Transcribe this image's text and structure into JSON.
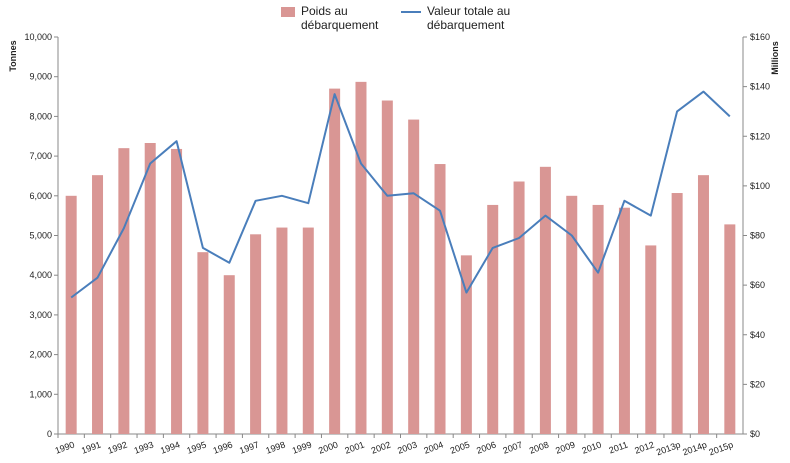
{
  "legend": {
    "bar_label": "Poids au débarquement",
    "line_label": "Valeur totale au débarquement"
  },
  "colors": {
    "bar": "#d99694",
    "line": "#4a7ebb",
    "axis": "#888888",
    "text": "#222222"
  },
  "chart_data": {
    "type": "bar",
    "categories": [
      "1990",
      "1991",
      "1992",
      "1993",
      "1994",
      "1995",
      "1996",
      "1997",
      "1998",
      "1999",
      "2000",
      "2001",
      "2002",
      "2003",
      "2004",
      "2005",
      "2006",
      "2007",
      "2008",
      "2009",
      "2010",
      "2011",
      "2012",
      "2013p",
      "2014p",
      "2015p"
    ],
    "series": [
      {
        "name": "Poids au débarquement",
        "type": "bar",
        "axis": "left",
        "values": [
          6000,
          6520,
          7200,
          7330,
          7180,
          4580,
          4000,
          5030,
          5200,
          5200,
          8700,
          8870,
          8400,
          7920,
          6800,
          4500,
          5770,
          6360,
          6730,
          6000,
          5770,
          5700,
          4750,
          6070,
          6520,
          5280
        ]
      },
      {
        "name": "Valeur totale au débarquement",
        "type": "line",
        "axis": "right",
        "values": [
          55,
          63,
          83,
          109,
          118,
          75,
          69,
          94,
          96,
          93,
          137,
          109,
          96,
          97,
          90,
          57,
          75,
          79,
          88,
          80,
          65,
          94,
          88,
          130,
          138,
          128
        ]
      }
    ],
    "y_left": {
      "label": "Tonnes",
      "ylim": [
        0,
        10000
      ],
      "ticks": [
        "0",
        "1,000",
        "2,000",
        "3,000",
        "4,000",
        "5,000",
        "6,000",
        "7,000",
        "8,000",
        "9,000",
        "10,000"
      ]
    },
    "y_right": {
      "label": "Millions",
      "ylim": [
        0,
        160
      ],
      "ticks": [
        "$0",
        "$20",
        "$40",
        "$60",
        "$80",
        "$100",
        "$120",
        "$140",
        "$160"
      ]
    },
    "grid": false,
    "legend_position": "top-center"
  }
}
